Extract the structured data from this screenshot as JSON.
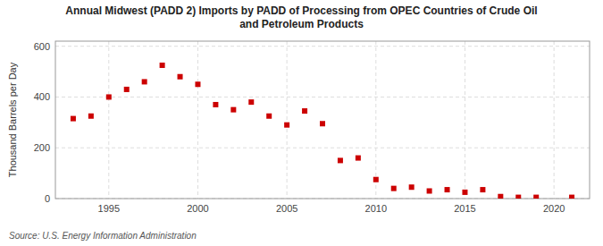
{
  "chart_data": {
    "type": "scatter",
    "title": "Annual Midwest (PADD 2) Imports by PADD of Processing from OPEC Countries of Crude Oil\nand Petroleum Products",
    "ylabel": "Thousand Barrels per Day",
    "source": "Source: U.S. Energy Information Administration",
    "x": [
      1993,
      1994,
      1995,
      1996,
      1997,
      1998,
      1999,
      2000,
      2001,
      2002,
      2003,
      2004,
      2005,
      2006,
      2007,
      2008,
      2009,
      2010,
      2011,
      2012,
      2013,
      2014,
      2015,
      2016,
      2017,
      2018,
      2019,
      2021
    ],
    "values": [
      315,
      325,
      400,
      430,
      460,
      525,
      480,
      450,
      370,
      350,
      380,
      325,
      290,
      345,
      295,
      150,
      160,
      75,
      40,
      45,
      30,
      35,
      25,
      35,
      8,
      5,
      5,
      5
    ],
    "color": "#cc0000",
    "marker": "square",
    "xlim": [
      1992,
      2022
    ],
    "xticks": [
      1995,
      2000,
      2005,
      2010,
      2015,
      2020
    ],
    "ylim": [
      0,
      620
    ],
    "yticks": [
      0,
      200,
      400,
      600
    ],
    "grid": true
  }
}
